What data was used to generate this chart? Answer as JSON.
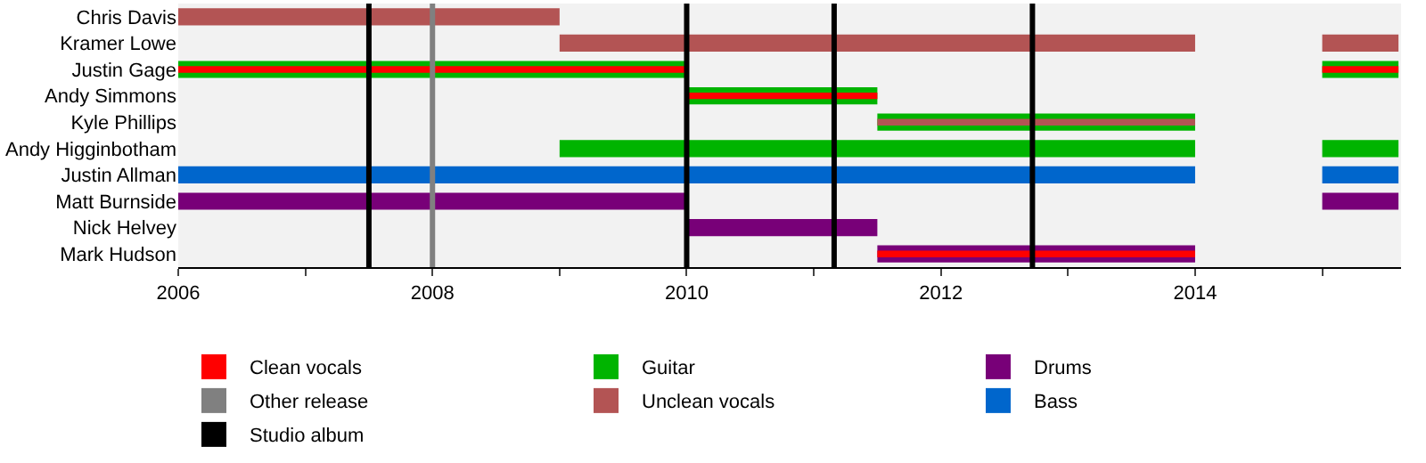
{
  "chart_data": {
    "type": "bar",
    "orientation": "horizontal",
    "categories": [
      "Chris Davis",
      "Kramer Lowe",
      "Justin Gage",
      "Andy Simmons",
      "Kyle Phillips",
      "Andy Higginbotham",
      "Justin Allman",
      "Matt Burnside",
      "Nick Helvey",
      "Mark Hudson"
    ],
    "series": [
      {
        "name": "Clean vocals",
        "color": "#ff0000",
        "values": [
          null,
          null,
          4,
          1.5,
          null,
          null,
          null,
          null,
          null,
          2.5
        ],
        "base": [
          null,
          null,
          2006,
          2010,
          null,
          null,
          null,
          null,
          null,
          2011.5
        ]
      },
      {
        "color": "#ff0000",
        "values": [
          null,
          null,
          0.6,
          null,
          null,
          null,
          null,
          null,
          null,
          null
        ],
        "base": [
          null,
          null,
          2015,
          null,
          null,
          null,
          null,
          null,
          null,
          null
        ]
      },
      {
        "name": "Unclean vocals",
        "color": "#b35454",
        "values": [
          3,
          5,
          null,
          null,
          2.5,
          null,
          null,
          null,
          null,
          null
        ],
        "base": [
          2006,
          2009,
          null,
          null,
          2011.5,
          null,
          null,
          null,
          null,
          null
        ]
      },
      {
        "color": "#b35454",
        "values": [
          null,
          0.6,
          null,
          null,
          null,
          null,
          null,
          null,
          null,
          null
        ],
        "base": [
          null,
          2015,
          null,
          null,
          null,
          null,
          null,
          null,
          null,
          null
        ]
      },
      {
        "name": "Guitar",
        "color": "#00b400",
        "values": [
          null,
          null,
          4,
          1.5,
          2.5,
          5,
          null,
          null,
          null,
          null
        ],
        "base": [
          null,
          null,
          2006,
          2010,
          2011.5,
          2009,
          null,
          null,
          null,
          null
        ]
      },
      {
        "color": "#00b400",
        "values": [
          null,
          null,
          0.6,
          null,
          null,
          0.6,
          null,
          null,
          null,
          null
        ],
        "base": [
          null,
          null,
          2015,
          null,
          null,
          2015,
          null,
          null,
          null,
          null
        ]
      },
      {
        "name": "Bass",
        "color": "#0066cc",
        "values": [
          null,
          null,
          null,
          null,
          null,
          null,
          8,
          null,
          null,
          null
        ],
        "base": [
          null,
          null,
          null,
          null,
          null,
          null,
          2006,
          null,
          null,
          null
        ]
      },
      {
        "color": "#0066cc",
        "values": [
          null,
          null,
          null,
          null,
          null,
          null,
          0.6,
          null,
          null,
          null
        ],
        "base": [
          null,
          null,
          null,
          null,
          null,
          null,
          2015,
          null,
          null,
          null
        ]
      },
      {
        "name": "Drums",
        "color": "#780078",
        "values": [
          null,
          null,
          null,
          null,
          null,
          null,
          null,
          4,
          1.5,
          2.5
        ],
        "base": [
          null,
          null,
          null,
          null,
          null,
          null,
          null,
          2006,
          2010,
          2011.5
        ]
      },
      {
        "color": "#780078",
        "values": [
          null,
          null,
          null,
          null,
          null,
          null,
          null,
          0.6,
          null,
          null
        ],
        "base": [
          null,
          null,
          null,
          null,
          null,
          null,
          null,
          2015,
          null,
          null
        ]
      }
    ],
    "ref_lines": [
      {
        "axis": "x",
        "value": 2007.5,
        "label": "Studio album",
        "color": "#000000"
      },
      {
        "axis": "x",
        "value": 2008,
        "label": "Other release",
        "color": "#808080"
      },
      {
        "axis": "x",
        "value": 2010,
        "color": "#000000"
      },
      {
        "axis": "x",
        "value": 2011.16,
        "color": "#000000"
      },
      {
        "axis": "x",
        "value": 2012.72,
        "color": "#000000"
      }
    ],
    "xlim": [
      2006,
      2015.62
    ],
    "xticks": [
      2006,
      {
        "value": 2007,
        "label": null
      },
      2008,
      {
        "value": 2009,
        "label": null
      },
      2010,
      {
        "value": 2011,
        "label": null
      },
      2012,
      {
        "value": 2013,
        "label": null
      },
      2014,
      {
        "value": 2015,
        "label": null
      }
    ],
    "legend": "bottom"
  }
}
